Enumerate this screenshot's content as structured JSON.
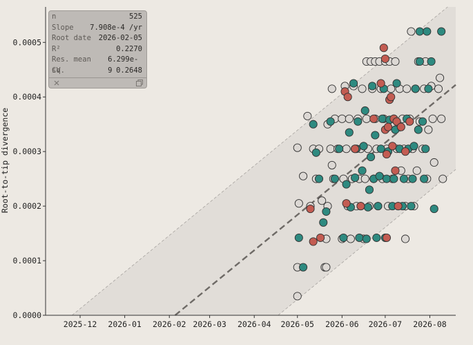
{
  "stats": {
    "rows": [
      {
        "label": "n",
        "value": "525"
      },
      {
        "label": "Slope",
        "value": "7.908e-4 /yr"
      },
      {
        "label": "Root date",
        "value": "2026-02-05"
      },
      {
        "label": "R²",
        "value": "0.2270"
      },
      {
        "label": "Res. mean sq.",
        "value": "6.299e-9"
      },
      {
        "label": "CV",
        "value": "0.2648"
      }
    ]
  },
  "chart_data": {
    "type": "scatter",
    "xlabel": "",
    "ylabel": "Root-to-tip divergence",
    "x_range": [
      "2025-11-07",
      "2026-08-19"
    ],
    "y_range": [
      0,
      0.000565
    ],
    "x_ticks": [
      "2025-12",
      "2026-01",
      "2026-02",
      "2026-03",
      "2026-04",
      "2026-05",
      "2026-06",
      "2026-07",
      "2026-08"
    ],
    "y_ticks": [
      "0.0000",
      "0.0001",
      "0.0002",
      "0.0003",
      "0.0004",
      "0.0005"
    ],
    "regression": {
      "root_date": "2026-02-05",
      "slope_per_year": 0.0007908,
      "band_halfwidth": 0.000155
    },
    "colors": {
      "background": "#ede9e3",
      "band": "#e1ddd8",
      "gray": "#dcd8d4",
      "teal": "#2e8a80",
      "red": "#c35c52",
      "outline": "#333333",
      "regression": "#6e6a66"
    },
    "series": [
      {
        "color": "gray",
        "points": [
          [
            "2026-05-01",
            0.000307
          ],
          [
            "2026-05-01",
            3.5e-05
          ],
          [
            "2026-05-01",
            8.8e-05
          ],
          [
            "2026-05-02",
            0.000205
          ],
          [
            "2026-05-05",
            0.000255
          ],
          [
            "2026-05-08",
            0.000365
          ],
          [
            "2026-05-10",
            0.0002
          ],
          [
            "2026-05-12",
            0.000305
          ],
          [
            "2026-05-14",
            0.00025
          ],
          [
            "2026-05-16",
            0.000305
          ],
          [
            "2026-05-18",
            0.00021
          ],
          [
            "2026-05-20",
            8.8e-05
          ],
          [
            "2026-05-21",
            8.8e-05
          ],
          [
            "2026-05-21",
            0.00014
          ],
          [
            "2026-05-22",
            0.0002
          ],
          [
            "2026-05-22",
            0.00035
          ],
          [
            "2026-05-24",
            0.000305
          ],
          [
            "2026-05-25",
            0.000275
          ],
          [
            "2026-05-25",
            0.000415
          ],
          [
            "2026-05-26",
            0.00025
          ],
          [
            "2026-05-27",
            0.00036
          ],
          [
            "2026-05-29",
            0.000305
          ],
          [
            "2026-06-01",
            0.00014
          ],
          [
            "2026-06-01",
            0.00036
          ],
          [
            "2026-06-02",
            0.00025
          ],
          [
            "2026-06-03",
            0.00042
          ],
          [
            "2026-06-04",
            0.000305
          ],
          [
            "2026-06-05",
            0.0002
          ],
          [
            "2026-06-06",
            0.00036
          ],
          [
            "2026-06-07",
            0.00014
          ],
          [
            "2026-06-08",
            0.00025
          ],
          [
            "2026-06-09",
            0.00042
          ],
          [
            "2026-06-10",
            0.000305
          ],
          [
            "2026-06-11",
            0.0002
          ],
          [
            "2026-06-12",
            0.00036
          ],
          [
            "2026-06-13",
            0.00025
          ],
          [
            "2026-06-14",
            0.000305
          ],
          [
            "2026-06-15",
            0.000415
          ],
          [
            "2026-06-16",
            0.00014
          ],
          [
            "2026-06-17",
            0.00025
          ],
          [
            "2026-06-18",
            0.00036
          ],
          [
            "2026-06-18",
            0.000465
          ],
          [
            "2026-06-19",
            0.000305
          ],
          [
            "2026-06-20",
            0.0002
          ],
          [
            "2026-06-21",
            0.000465
          ],
          [
            "2026-06-22",
            0.000415
          ],
          [
            "2026-06-23",
            0.00025
          ],
          [
            "2026-06-24",
            0.00036
          ],
          [
            "2026-06-24",
            0.000465
          ],
          [
            "2026-06-25",
            0.000305
          ],
          [
            "2026-06-26",
            0.0002
          ],
          [
            "2026-06-27",
            0.000465
          ],
          [
            "2026-06-28",
            0.000415
          ],
          [
            "2026-06-29",
            0.00025
          ],
          [
            "2026-06-30",
            0.00036
          ],
          [
            "2026-07-01",
            0.000465
          ],
          [
            "2026-07-02",
            0.000305
          ],
          [
            "2026-07-03",
            0.0002
          ],
          [
            "2026-07-04",
            0.000465
          ],
          [
            "2026-07-05",
            0.000415
          ],
          [
            "2026-07-06",
            0.00025
          ],
          [
            "2026-07-07",
            0.00036
          ],
          [
            "2026-07-08",
            0.000465
          ],
          [
            "2026-07-09",
            0.000305
          ],
          [
            "2026-07-10",
            0.0002
          ],
          [
            "2026-07-11",
            0.000415
          ],
          [
            "2026-07-12",
            0.000265
          ],
          [
            "2026-07-13",
            0.00036
          ],
          [
            "2026-07-14",
            0.000305
          ],
          [
            "2026-07-15",
            0.0002
          ],
          [
            "2026-07-15",
            0.00014
          ],
          [
            "2026-07-16",
            0.000415
          ],
          [
            "2026-07-17",
            0.00025
          ],
          [
            "2026-07-18",
            0.00036
          ],
          [
            "2026-07-19",
            0.00052
          ],
          [
            "2026-07-20",
            0.000305
          ],
          [
            "2026-07-21",
            0.0002
          ],
          [
            "2026-07-22",
            0.000415
          ],
          [
            "2026-07-23",
            0.000265
          ],
          [
            "2026-07-24",
            0.000465
          ],
          [
            "2026-07-25",
            0.000355
          ],
          [
            "2026-07-27",
            0.000305
          ],
          [
            "2026-07-28",
            0.000415
          ],
          [
            "2026-07-29",
            0.000465
          ],
          [
            "2026-07-30",
            0.00025
          ],
          [
            "2026-07-31",
            0.00034
          ],
          [
            "2026-08-02",
            0.00042
          ],
          [
            "2026-08-03",
            0.00036
          ],
          [
            "2026-08-04",
            0.00028
          ],
          [
            "2026-08-07",
            0.000415
          ],
          [
            "2026-08-08",
            0.000435
          ],
          [
            "2026-08-09",
            0.00036
          ],
          [
            "2026-08-10",
            0.00025
          ]
        ]
      },
      {
        "color": "teal",
        "points": [
          [
            "2026-05-02",
            0.000142
          ],
          [
            "2026-05-05",
            8.8e-05
          ],
          [
            "2026-05-12",
            0.00035
          ],
          [
            "2026-05-14",
            0.000298
          ],
          [
            "2026-05-16",
            0.00025
          ],
          [
            "2026-05-19",
            0.00017
          ],
          [
            "2026-05-21",
            0.00019
          ],
          [
            "2026-05-24",
            0.000355
          ],
          [
            "2026-05-27",
            0.00025
          ],
          [
            "2026-05-30",
            0.000305
          ],
          [
            "2026-06-02",
            0.000142
          ],
          [
            "2026-06-04",
            0.00024
          ],
          [
            "2026-06-06",
            0.000335
          ],
          [
            "2026-06-07",
            0.000198
          ],
          [
            "2026-06-09",
            0.000425
          ],
          [
            "2026-06-10",
            0.000252
          ],
          [
            "2026-06-11",
            0.000305
          ],
          [
            "2026-06-12",
            0.000355
          ],
          [
            "2026-06-13",
            0.000142
          ],
          [
            "2026-06-14",
            0.0002
          ],
          [
            "2026-06-15",
            0.000265
          ],
          [
            "2026-06-16",
            0.00031
          ],
          [
            "2026-06-17",
            0.000375
          ],
          [
            "2026-06-18",
            0.00014
          ],
          [
            "2026-06-19",
            0.000198
          ],
          [
            "2026-06-20",
            0.00023
          ],
          [
            "2026-06-21",
            0.00029
          ],
          [
            "2026-06-22",
            0.00042
          ],
          [
            "2026-06-23",
            0.00025
          ],
          [
            "2026-06-24",
            0.00033
          ],
          [
            "2026-06-25",
            0.000142
          ],
          [
            "2026-06-26",
            0.0002
          ],
          [
            "2026-06-27",
            0.000255
          ],
          [
            "2026-06-28",
            0.000305
          ],
          [
            "2026-06-29",
            0.00036
          ],
          [
            "2026-06-30",
            0.000415
          ],
          [
            "2026-07-01",
            0.000142
          ],
          [
            "2026-07-02",
            0.00025
          ],
          [
            "2026-07-03",
            0.0003
          ],
          [
            "2026-07-04",
            0.000358
          ],
          [
            "2026-07-06",
            0.0002
          ],
          [
            "2026-07-07",
            0.00025
          ],
          [
            "2026-07-08",
            0.00034
          ],
          [
            "2026-07-09",
            0.000425
          ],
          [
            "2026-07-11",
            0.000305
          ],
          [
            "2026-07-13",
            0.0002
          ],
          [
            "2026-07-14",
            0.00025
          ],
          [
            "2026-07-16",
            0.00036
          ],
          [
            "2026-07-17",
            0.000305
          ],
          [
            "2026-07-19",
            0.0002
          ],
          [
            "2026-07-20",
            0.00025
          ],
          [
            "2026-07-21",
            0.00031
          ],
          [
            "2026-07-22",
            0.000415
          ],
          [
            "2026-07-24",
            0.00034
          ],
          [
            "2026-07-25",
            0.000465
          ],
          [
            "2026-07-25",
            0.00052
          ],
          [
            "2026-07-27",
            0.000355
          ],
          [
            "2026-07-28",
            0.00025
          ],
          [
            "2026-07-29",
            0.000305
          ],
          [
            "2026-07-30",
            0.00052
          ],
          [
            "2026-07-31",
            0.000415
          ],
          [
            "2026-08-02",
            0.000465
          ],
          [
            "2026-08-04",
            0.000195
          ],
          [
            "2026-08-09",
            0.00052
          ]
        ]
      },
      {
        "color": "red",
        "points": [
          [
            "2026-05-10",
            0.000195
          ],
          [
            "2026-05-12",
            0.000135
          ],
          [
            "2026-05-17",
            0.000142
          ],
          [
            "2026-06-03",
            0.00041
          ],
          [
            "2026-06-04",
            0.000205
          ],
          [
            "2026-06-05",
            0.0004
          ],
          [
            "2026-06-10",
            0.000305
          ],
          [
            "2026-06-14",
            0.0002
          ],
          [
            "2026-06-23",
            0.00036
          ],
          [
            "2026-06-28",
            0.000425
          ],
          [
            "2026-06-30",
            0.00049
          ],
          [
            "2026-07-01",
            0.00047
          ],
          [
            "2026-07-01",
            0.00034
          ],
          [
            "2026-07-02",
            0.000295
          ],
          [
            "2026-07-02",
            0.000142
          ],
          [
            "2026-07-03",
            0.000345
          ],
          [
            "2026-07-04",
            0.000395
          ],
          [
            "2026-07-05",
            0.0004
          ],
          [
            "2026-07-06",
            0.00031
          ],
          [
            "2026-07-07",
            0.00036
          ],
          [
            "2026-07-08",
            0.000265
          ],
          [
            "2026-07-09",
            0.000355
          ],
          [
            "2026-07-10",
            0.0002
          ],
          [
            "2026-07-12",
            0.000345
          ],
          [
            "2026-07-15",
            0.0003
          ],
          [
            "2026-07-18",
            0.000355
          ]
        ]
      }
    ]
  }
}
